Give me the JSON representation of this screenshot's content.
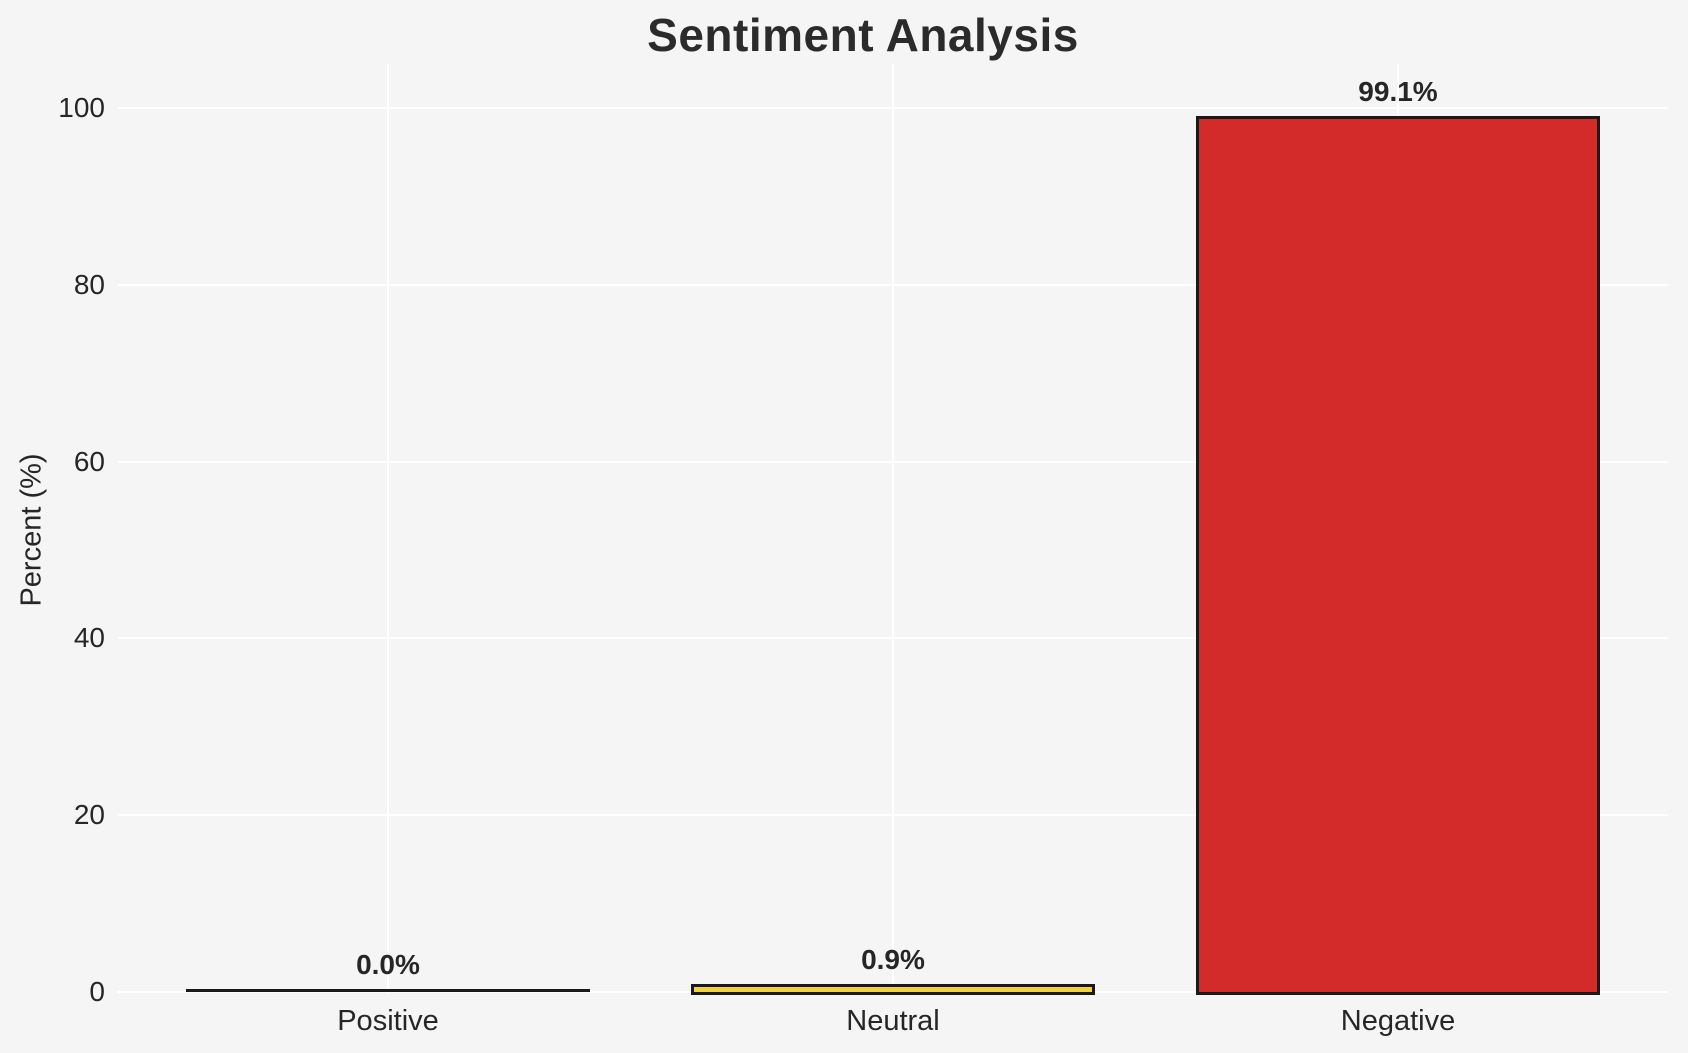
{
  "chart_data": {
    "type": "bar",
    "title": "Sentiment Analysis",
    "xlabel": "",
    "ylabel": "Percent (%)",
    "categories": [
      "Positive",
      "Neutral",
      "Negative"
    ],
    "values": [
      0.0,
      0.9,
      99.1
    ],
    "bar_labels": [
      "0.0%",
      "0.9%",
      "99.1%"
    ],
    "bar_colors": [
      "none",
      "#f2d140",
      "#d32a2a"
    ],
    "bar_edge_color": "#1a1a1a",
    "yticks": [
      0,
      20,
      40,
      60,
      80,
      100
    ],
    "ylim": [
      0,
      105
    ],
    "grid": true,
    "grid_color": "#ffffff",
    "legend": "none",
    "background_color": "#f5f5f5",
    "text_color": "#262626",
    "title_color": "#2b2b2b"
  }
}
